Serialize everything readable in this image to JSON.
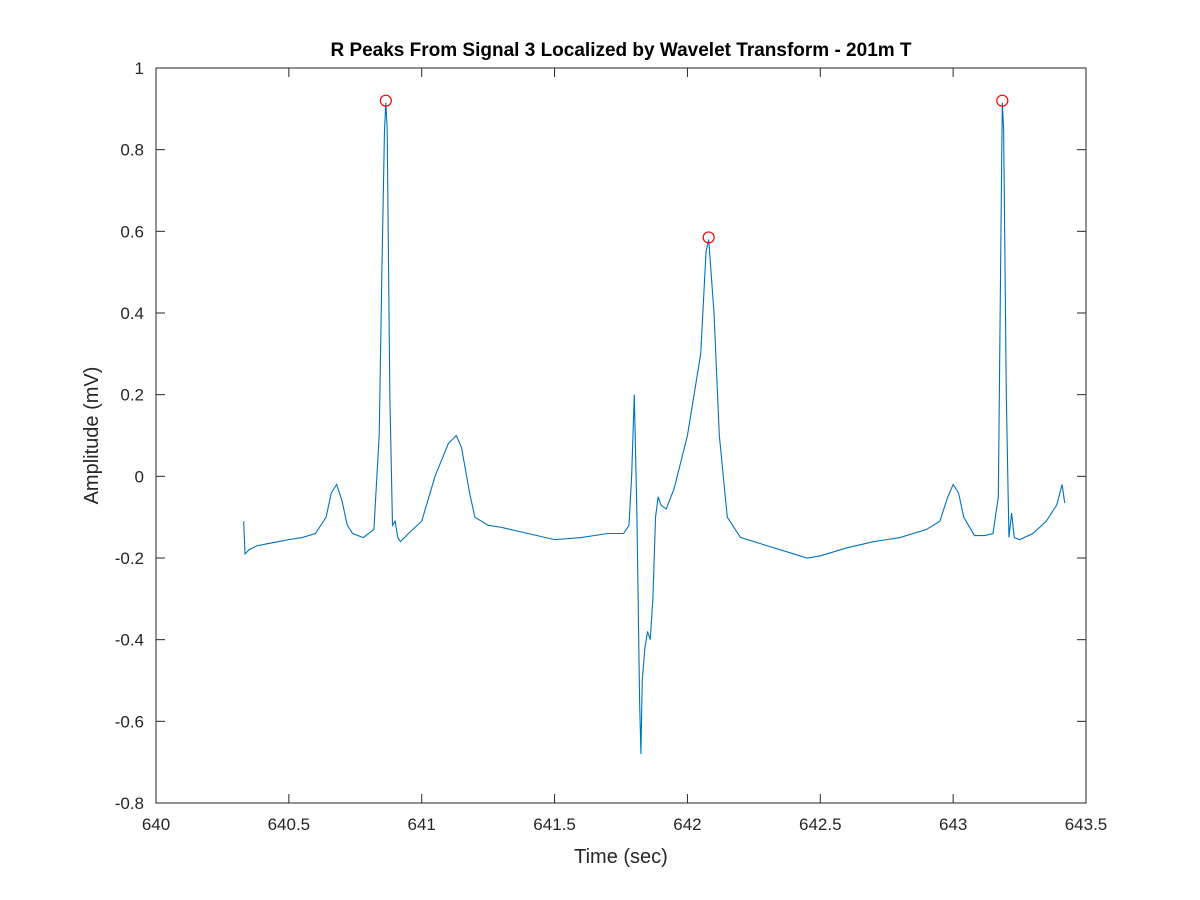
{
  "chart_data": {
    "type": "line",
    "title": "R Peaks From Signal 3 Localized by Wavelet Transform - 201m T",
    "xlabel": "Time (sec)",
    "ylabel": "Amplitude (mV)",
    "xlim": [
      640,
      643.5
    ],
    "ylim": [
      -0.8,
      1
    ],
    "xticks": [
      640,
      640.5,
      641,
      641.5,
      642,
      642.5,
      643,
      643.5
    ],
    "xtick_labels": [
      "640",
      "640.5",
      "641",
      "641.5",
      "642",
      "642.5",
      "643",
      "643.5"
    ],
    "yticks": [
      -0.8,
      -0.6,
      -0.4,
      -0.2,
      0,
      0.2,
      0.4,
      0.6,
      0.8,
      1
    ],
    "ytick_labels": [
      "-0.8",
      "-0.6",
      "-0.4",
      "-0.2",
      "0",
      "0.2",
      "0.4",
      "0.6",
      "0.8",
      "1"
    ],
    "grid": false,
    "legend": "none",
    "line_color": "#0072BD",
    "marker_color": "#FF0000",
    "series": [
      {
        "style": "line",
        "x": [
          640.33,
          640.335,
          640.35,
          640.38,
          640.42,
          640.46,
          640.5,
          640.55,
          640.6,
          640.64,
          640.66,
          640.68,
          640.7,
          640.72,
          640.74,
          640.78,
          640.82,
          640.84,
          640.85,
          640.86,
          640.865,
          640.87,
          640.88,
          640.89,
          640.9,
          640.91,
          640.92,
          640.95,
          641.0,
          641.05,
          641.1,
          641.13,
          641.15,
          641.18,
          641.2,
          641.25,
          641.3,
          641.4,
          641.5,
          641.6,
          641.7,
          641.76,
          641.78,
          641.79,
          641.8,
          641.81,
          641.82,
          641.825,
          641.83,
          641.84,
          641.85,
          641.86,
          641.87,
          641.88,
          641.89,
          641.9,
          641.92,
          641.95,
          642.0,
          642.05,
          642.07,
          642.08,
          642.1,
          642.12,
          642.15,
          642.2,
          642.3,
          642.4,
          642.45,
          642.5,
          642.6,
          642.7,
          642.8,
          642.9,
          642.95,
          642.98,
          643.0,
          643.02,
          643.04,
          643.08,
          643.12,
          643.15,
          643.17,
          643.18,
          643.185,
          643.19,
          643.2,
          643.21,
          643.22,
          643.23,
          643.25,
          643.3,
          643.35,
          643.39,
          643.41,
          643.42
        ],
        "y": [
          -0.11,
          -0.19,
          -0.18,
          -0.17,
          -0.165,
          -0.16,
          -0.155,
          -0.15,
          -0.14,
          -0.1,
          -0.04,
          -0.02,
          -0.06,
          -0.12,
          -0.14,
          -0.15,
          -0.13,
          0.1,
          0.5,
          0.85,
          0.915,
          0.85,
          0.2,
          -0.12,
          -0.11,
          -0.15,
          -0.16,
          -0.14,
          -0.11,
          0.0,
          0.08,
          0.1,
          0.07,
          -0.04,
          -0.1,
          -0.12,
          -0.125,
          -0.14,
          -0.155,
          -0.15,
          -0.14,
          -0.14,
          -0.12,
          0.0,
          0.2,
          -0.1,
          -0.55,
          -0.68,
          -0.5,
          -0.42,
          -0.38,
          -0.4,
          -0.3,
          -0.1,
          -0.05,
          -0.07,
          -0.08,
          -0.03,
          0.1,
          0.3,
          0.55,
          0.58,
          0.4,
          0.1,
          -0.1,
          -0.15,
          -0.17,
          -0.19,
          -0.2,
          -0.195,
          -0.175,
          -0.16,
          -0.15,
          -0.13,
          -0.11,
          -0.05,
          -0.02,
          -0.04,
          -0.1,
          -0.145,
          -0.145,
          -0.14,
          -0.05,
          0.6,
          0.915,
          0.85,
          0.2,
          -0.15,
          -0.09,
          -0.15,
          -0.155,
          -0.14,
          -0.11,
          -0.07,
          -0.02,
          -0.065
        ]
      },
      {
        "style": "marker",
        "marker": "circle",
        "x": [
          640.865,
          642.08,
          643.185
        ],
        "y": [
          0.92,
          0.585,
          0.92
        ]
      }
    ]
  }
}
